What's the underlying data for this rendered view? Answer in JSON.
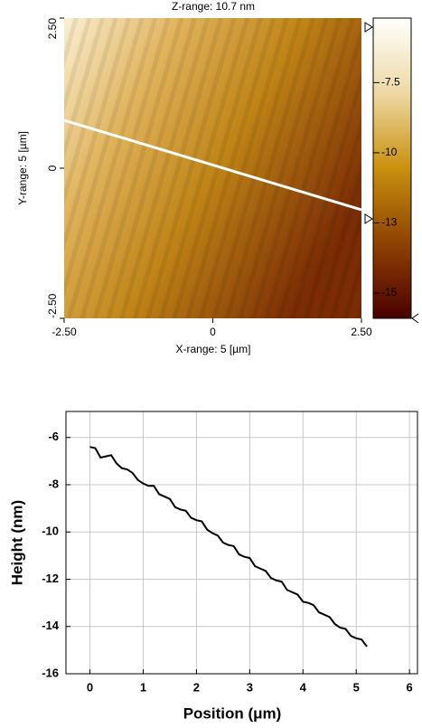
{
  "chart_data": [
    {
      "type": "heatmap",
      "title": "Z-range: 10.7 nm",
      "xlabel": "X-range: 5 [µm]",
      "ylabel": "Y-range: 5 [µm]",
      "xlim": [
        -2.5,
        2.5
      ],
      "xticks": [
        {
          "value": -2.5,
          "label": "-2.50"
        },
        0,
        {
          "value": 2.5,
          "label": "2.50"
        }
      ],
      "ylim": [
        -2.5,
        2.5
      ],
      "yticks": [
        {
          "value": -2.5,
          "label": "-2.50"
        },
        0,
        {
          "value": 2.5,
          "label": "2.50"
        }
      ],
      "zlim": [
        -15.9,
        -5.2
      ],
      "zticks": [
        {
          "value": -7.5,
          "label": "-7.5"
        },
        -10,
        {
          "value": -12.5,
          "label": "-13"
        },
        -15
      ]
    },
    {
      "type": "line",
      "xlabel": "Position (μm)",
      "ylabel": "Height (nm)",
      "xlim": [
        -0.45,
        6.15
      ],
      "xticks": [
        0,
        1,
        2,
        3,
        4,
        5,
        6
      ],
      "ylim": [
        -16,
        -4.9
      ],
      "yticks": [
        -16,
        -14,
        -12,
        -10,
        -8,
        -6
      ],
      "grid": true,
      "x": [
        0,
        0.1,
        0.2,
        0.3,
        0.4,
        0.5,
        0.6,
        0.7,
        0.8,
        0.9,
        1.0,
        1.1,
        1.2,
        1.3,
        1.4,
        1.5,
        1.6,
        1.7,
        1.8,
        1.9,
        2.0,
        2.1,
        2.2,
        2.3,
        2.4,
        2.5,
        2.6,
        2.7,
        2.8,
        2.9,
        3.0,
        3.1,
        3.2,
        3.3,
        3.4,
        3.5,
        3.6,
        3.7,
        3.8,
        3.9,
        4.0,
        4.1,
        4.2,
        4.3,
        4.4,
        4.5,
        4.6,
        4.7,
        4.8,
        4.9,
        5.0,
        5.1,
        5.2
      ],
      "series": [
        {
          "color": "#000000",
          "values": [
            -6.4,
            -6.45,
            -6.85,
            -6.8,
            -6.75,
            -7.1,
            -7.3,
            -7.35,
            -7.5,
            -7.8,
            -7.95,
            -8.05,
            -8.05,
            -8.4,
            -8.5,
            -8.6,
            -8.95,
            -9.05,
            -9.1,
            -9.4,
            -9.5,
            -9.55,
            -9.9,
            -10.05,
            -10.15,
            -10.45,
            -10.55,
            -10.6,
            -10.95,
            -11.05,
            -11.1,
            -11.45,
            -11.55,
            -11.65,
            -11.95,
            -12.05,
            -12.1,
            -12.45,
            -12.55,
            -12.65,
            -12.95,
            -13.0,
            -13.1,
            -13.4,
            -13.5,
            -13.6,
            -13.9,
            -14.05,
            -14.1,
            -14.4,
            -14.5,
            -14.55,
            -14.85
          ]
        }
      ]
    }
  ]
}
